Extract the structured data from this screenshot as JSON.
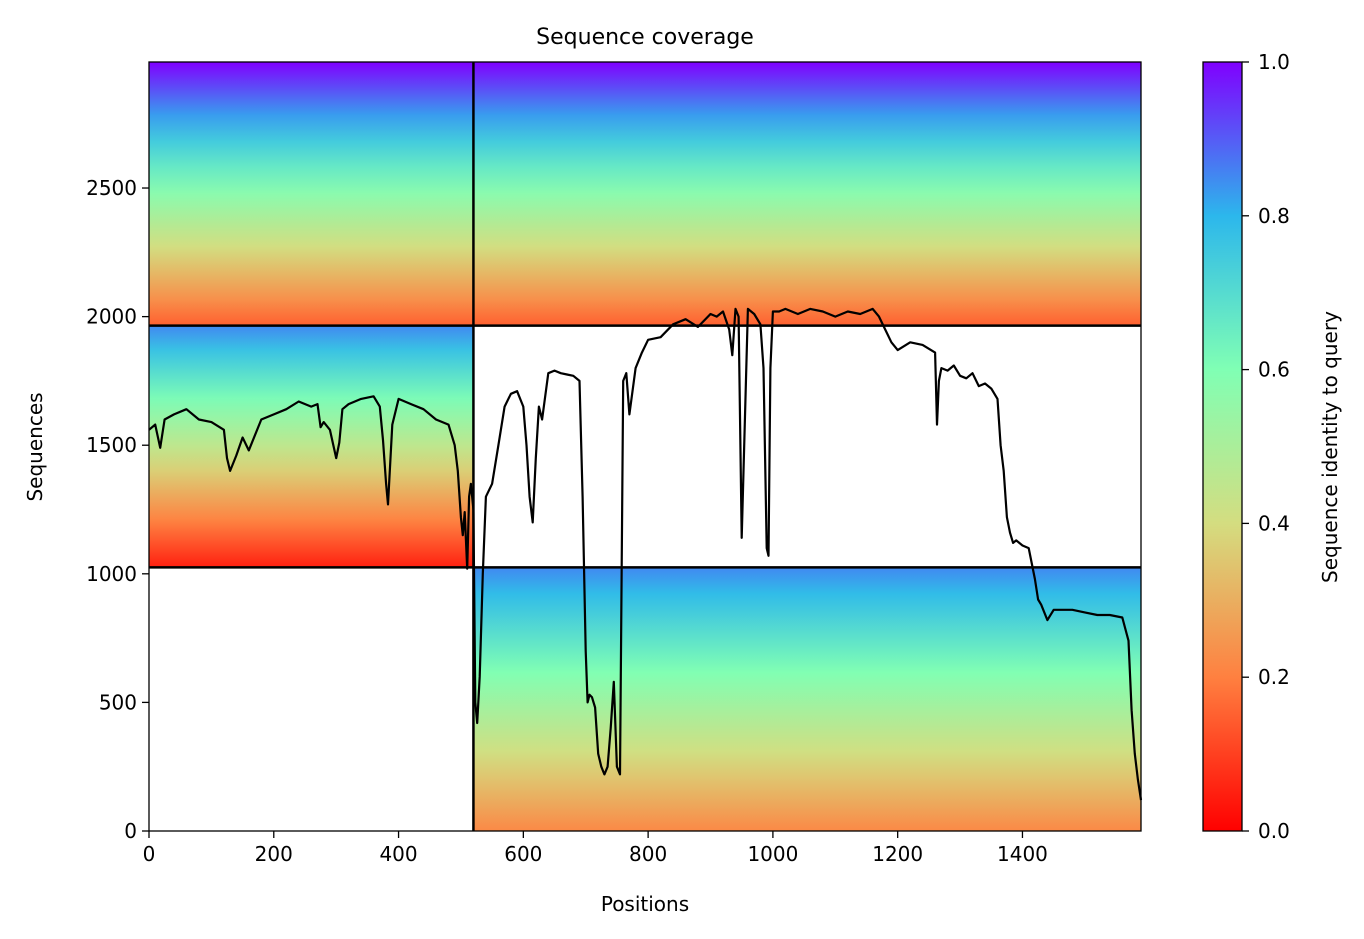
{
  "chart_data": {
    "type": "heatmap",
    "title": "Sequence coverage",
    "xlabel": "Positions",
    "ylabel": "Sequences",
    "xlim": [
      0,
      1590
    ],
    "ylim": [
      0,
      2990
    ],
    "xticks": [
      0,
      200,
      400,
      600,
      800,
      1000,
      1200,
      1400
    ],
    "yticks": [
      0,
      500,
      1000,
      1500,
      2000,
      2500
    ],
    "grid": false,
    "colorbar": {
      "label": "Sequence identity to query",
      "range": [
        0.0,
        1.0
      ],
      "ticks": [
        0.0,
        0.2,
        0.4,
        0.6,
        0.8,
        1.0
      ],
      "tick_labels": [
        "0.0",
        "0.2",
        "0.4",
        "0.6",
        "0.8",
        "1.0"
      ],
      "colormap": "rainbow_r",
      "colors": [
        "#ff0000",
        "#ff8040",
        "#d4dd80",
        "#80ffb4",
        "#2cb7ec",
        "#8000ff"
      ]
    },
    "domain_boundaries": {
      "x": [
        520
      ],
      "y": [
        1025,
        1965
      ],
      "color": "#000000"
    },
    "blocks": [
      {
        "x": [
          0,
          520
        ],
        "y": [
          1965,
          2990
        ],
        "identity_top": 1.0,
        "identity_bottom": 0.15
      },
      {
        "x": [
          520,
          1590
        ],
        "y": [
          1965,
          2990
        ],
        "identity_top": 1.0,
        "identity_bottom": 0.15
      },
      {
        "x": [
          0,
          520
        ],
        "y": [
          1025,
          1965
        ],
        "identity_top": 0.85,
        "identity_bottom": 0.05
      },
      {
        "x": [
          520,
          1590
        ],
        "y": [
          0,
          1025
        ],
        "identity_top": 0.85,
        "identity_bottom": 0.22
      }
    ],
    "coverage_line": {
      "color": "#000000",
      "x": [
        0,
        10,
        18,
        25,
        40,
        60,
        80,
        100,
        120,
        125,
        130,
        140,
        150,
        160,
        180,
        200,
        220,
        240,
        260,
        270,
        275,
        280,
        290,
        300,
        305,
        310,
        320,
        340,
        360,
        370,
        375,
        380,
        383,
        386,
        390,
        400,
        420,
        440,
        460,
        480,
        490,
        495,
        500,
        503,
        506,
        510,
        513,
        516,
        520,
        523,
        526,
        530,
        535,
        540,
        550,
        560,
        570,
        580,
        590,
        600,
        605,
        610,
        615,
        620,
        625,
        630,
        640,
        650,
        660,
        670,
        680,
        690,
        695,
        700,
        703,
        706,
        710,
        715,
        720,
        725,
        730,
        735,
        740,
        745,
        750,
        755,
        760,
        765,
        770,
        780,
        790,
        800,
        820,
        840,
        860,
        880,
        900,
        910,
        920,
        930,
        935,
        940,
        945,
        950,
        960,
        970,
        980,
        985,
        990,
        993,
        996,
        1000,
        1010,
        1020,
        1040,
        1060,
        1080,
        1100,
        1120,
        1140,
        1160,
        1170,
        1180,
        1190,
        1200,
        1220,
        1240,
        1260,
        1263,
        1266,
        1270,
        1280,
        1290,
        1300,
        1310,
        1320,
        1330,
        1340,
        1350,
        1360,
        1365,
        1370,
        1375,
        1380,
        1385,
        1390,
        1400,
        1410,
        1420,
        1425,
        1430,
        1440,
        1450,
        1460,
        1480,
        1500,
        1520,
        1540,
        1560,
        1570,
        1575,
        1580,
        1585,
        1590
      ],
      "y": [
        1560,
        1580,
        1490,
        1600,
        1620,
        1640,
        1600,
        1590,
        1560,
        1450,
        1400,
        1460,
        1530,
        1480,
        1600,
        1620,
        1640,
        1670,
        1650,
        1660,
        1570,
        1590,
        1560,
        1450,
        1510,
        1640,
        1660,
        1680,
        1690,
        1650,
        1520,
        1350,
        1270,
        1400,
        1580,
        1680,
        1660,
        1640,
        1600,
        1580,
        1500,
        1400,
        1220,
        1150,
        1240,
        1020,
        1300,
        1350,
        1250,
        500,
        420,
        600,
        1000,
        1300,
        1350,
        1500,
        1650,
        1700,
        1710,
        1650,
        1500,
        1300,
        1200,
        1450,
        1650,
        1600,
        1780,
        1790,
        1780,
        1775,
        1770,
        1750,
        1300,
        700,
        500,
        530,
        520,
        480,
        300,
        250,
        220,
        250,
        400,
        580,
        250,
        220,
        1750,
        1780,
        1620,
        1800,
        1860,
        1910,
        1920,
        1970,
        1990,
        1960,
        2010,
        2000,
        2020,
        1950,
        1850,
        2030,
        2000,
        1140,
        2030,
        2010,
        1970,
        1800,
        1100,
        1070,
        1800,
        2020,
        2020,
        2030,
        2010,
        2030,
        2020,
        2000,
        2020,
        2010,
        2030,
        2000,
        1950,
        1900,
        1870,
        1900,
        1890,
        1860,
        1580,
        1750,
        1800,
        1790,
        1810,
        1770,
        1760,
        1780,
        1730,
        1740,
        1720,
        1680,
        1500,
        1400,
        1220,
        1160,
        1120,
        1130,
        1110,
        1100,
        980,
        900,
        880,
        820,
        860,
        860,
        860,
        850,
        840,
        840,
        830,
        740,
        470,
        300,
        200,
        120
      ]
    }
  }
}
